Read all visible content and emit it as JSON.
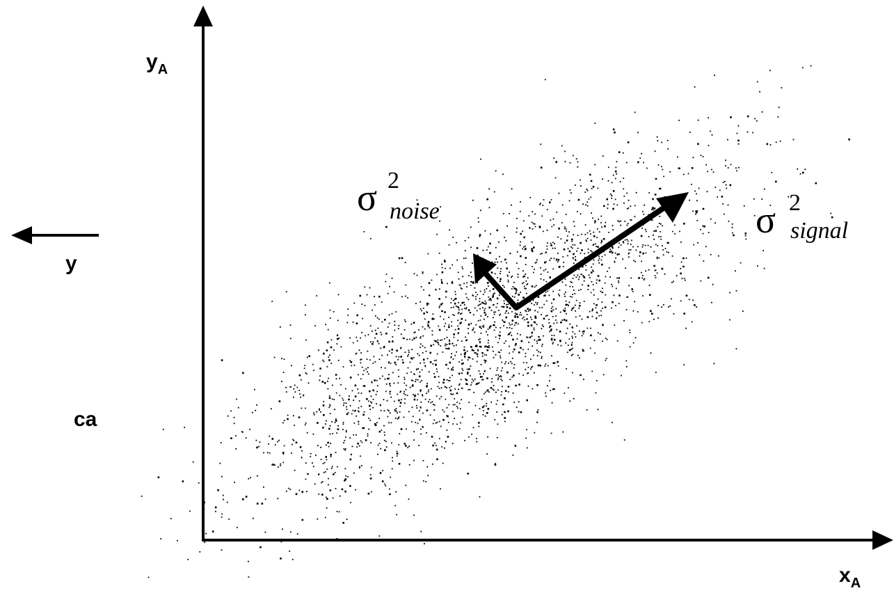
{
  "axes": {
    "y_axis": {
      "letter": "y",
      "subscript": "A"
    },
    "x_axis": {
      "letter": "x",
      "subscript": "A"
    }
  },
  "annotations": {
    "noise": {
      "symbol": "σ",
      "superscript": "2",
      "subscript": "noise"
    },
    "signal": {
      "symbol": "σ",
      "superscript": "2",
      "subscript": "signal"
    }
  },
  "left_fragment": {
    "label_top": "y",
    "label_bottom": "ca"
  },
  "colors": {
    "ink": "#000000",
    "background": "#ffffff"
  }
}
